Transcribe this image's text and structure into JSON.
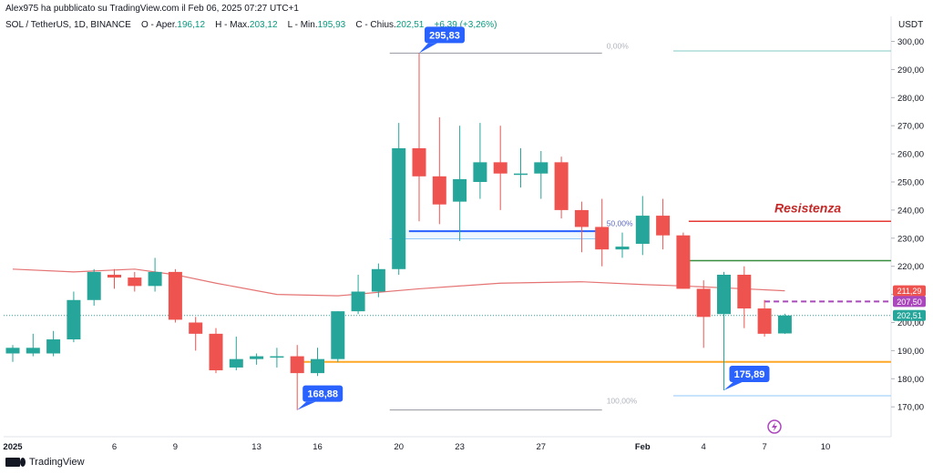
{
  "header": {
    "publisher": "Alex975 ha pubblicato su TradingView.com il Feb 06, 2025 07:27 UTC+1",
    "symbol": "SOL / TetherUS, 1D, BINANCE",
    "open_label": "O - Aper.",
    "open": "196,12",
    "high_label": "H - Max.",
    "high": "203,12",
    "low_label": "L - Min.",
    "low": "195,93",
    "close_label": "C - Chius.",
    "close": "202,51",
    "change": "+6,39 (+3,26%)",
    "currency": "USDT"
  },
  "footer": {
    "logo_text": "TradingView"
  },
  "colors": {
    "up": "#26a69a",
    "down": "#ef5350",
    "ma": "#e57373",
    "support": "#ffa726",
    "resistance": "#e53935",
    "blue_line": "#2962ff",
    "green_line": "#388e3c",
    "dashed": "#ab47bc",
    "callout": "#2962ff"
  },
  "chart_data": {
    "type": "candlestick",
    "y_range": [
      163,
      305
    ],
    "y_ticks": [
      "300,00",
      "290,00",
      "280,00",
      "270,00",
      "260,00",
      "250,00",
      "240,00",
      "230,00",
      "220,00",
      "210,00",
      "200,00",
      "190,00",
      "180,00",
      "170,00"
    ],
    "y_tick_values": [
      300,
      290,
      280,
      270,
      260,
      250,
      240,
      230,
      220,
      210,
      200,
      190,
      180,
      170
    ],
    "x_ticks": [
      {
        "day": 0,
        "label": "2025"
      },
      {
        "day": 5,
        "label": "6"
      },
      {
        "day": 8,
        "label": "9"
      },
      {
        "day": 12,
        "label": "13"
      },
      {
        "day": 15,
        "label": "16"
      },
      {
        "day": 19,
        "label": "20"
      },
      {
        "day": 22,
        "label": "23"
      },
      {
        "day": 26,
        "label": "27"
      },
      {
        "day": 31,
        "label": "Feb"
      },
      {
        "day": 34,
        "label": "4"
      },
      {
        "day": 37,
        "label": "7"
      },
      {
        "day": 40,
        "label": "10"
      }
    ],
    "candles": [
      {
        "o": 189,
        "h": 192,
        "l": 186,
        "c": 191
      },
      {
        "o": 189,
        "h": 196,
        "l": 188,
        "c": 191
      },
      {
        "o": 189,
        "h": 197,
        "l": 188,
        "c": 194
      },
      {
        "o": 194,
        "h": 211,
        "l": 193,
        "c": 208
      },
      {
        "o": 208,
        "h": 219,
        "l": 206,
        "c": 218
      },
      {
        "o": 217,
        "h": 219,
        "l": 212,
        "c": 216
      },
      {
        "o": 216,
        "h": 218,
        "l": 211,
        "c": 213
      },
      {
        "o": 213,
        "h": 223,
        "l": 211,
        "c": 218
      },
      {
        "o": 218,
        "h": 219,
        "l": 200,
        "c": 201
      },
      {
        "o": 200,
        "h": 202,
        "l": 190,
        "c": 196
      },
      {
        "o": 196,
        "h": 198,
        "l": 182,
        "c": 183
      },
      {
        "o": 184,
        "h": 195,
        "l": 183,
        "c": 187
      },
      {
        "o": 187,
        "h": 189,
        "l": 185,
        "c": 188
      },
      {
        "o": 188,
        "h": 191,
        "l": 184,
        "c": 188
      },
      {
        "o": 188,
        "h": 192,
        "l": 168.88,
        "c": 182
      },
      {
        "o": 182,
        "h": 191,
        "l": 181,
        "c": 187
      },
      {
        "o": 187,
        "h": 204,
        "l": 186,
        "c": 204
      },
      {
        "o": 204,
        "h": 217,
        "l": 203,
        "c": 211
      },
      {
        "o": 211,
        "h": 221,
        "l": 209,
        "c": 219
      },
      {
        "o": 219,
        "h": 271,
        "l": 217,
        "c": 262
      },
      {
        "o": 262,
        "h": 295.83,
        "l": 236,
        "c": 252
      },
      {
        "o": 252,
        "h": 273,
        "l": 235,
        "c": 242
      },
      {
        "o": 243,
        "h": 270,
        "l": 229,
        "c": 251
      },
      {
        "o": 250,
        "h": 271,
        "l": 244,
        "c": 257
      },
      {
        "o": 257,
        "h": 270,
        "l": 240,
        "c": 253
      },
      {
        "o": 253,
        "h": 262,
        "l": 248,
        "c": 253
      },
      {
        "o": 253,
        "h": 261,
        "l": 244,
        "c": 257
      },
      {
        "o": 257,
        "h": 259,
        "l": 237,
        "c": 240
      },
      {
        "o": 240,
        "h": 243,
        "l": 225,
        "c": 234
      },
      {
        "o": 234,
        "h": 244,
        "l": 220,
        "c": 226
      },
      {
        "o": 226,
        "h": 232,
        "l": 223,
        "c": 227
      },
      {
        "o": 228,
        "h": 245,
        "l": 224,
        "c": 238
      },
      {
        "o": 238,
        "h": 244,
        "l": 226,
        "c": 231
      },
      {
        "o": 231,
        "h": 232,
        "l": 212,
        "c": 212
      },
      {
        "o": 212,
        "h": 215,
        "l": 191,
        "c": 202
      },
      {
        "o": 203,
        "h": 218,
        "l": 175.89,
        "c": 217
      },
      {
        "o": 217,
        "h": 220,
        "l": 198,
        "c": 205
      },
      {
        "o": 205,
        "h": 208,
        "l": 195,
        "c": 196
      },
      {
        "o": 196.12,
        "h": 203.12,
        "l": 195.93,
        "c": 202.51
      }
    ],
    "moving_average": [
      {
        "day": 0,
        "v": 219
      },
      {
        "day": 3,
        "v": 218
      },
      {
        "day": 6,
        "v": 219
      },
      {
        "day": 8,
        "v": 217
      },
      {
        "day": 10,
        "v": 214
      },
      {
        "day": 13,
        "v": 210
      },
      {
        "day": 16,
        "v": 209.5
      },
      {
        "day": 20,
        "v": 212
      },
      {
        "day": 24,
        "v": 214
      },
      {
        "day": 28,
        "v": 214.5
      },
      {
        "day": 31,
        "v": 213.5
      },
      {
        "day": 33,
        "v": 213
      },
      {
        "day": 36,
        "v": 212
      },
      {
        "day": 38,
        "v": 211.29
      }
    ],
    "lines": {
      "support": {
        "value": 186,
        "from_day": 14
      },
      "resistance": {
        "value": 236,
        "from_day": 33,
        "label": "Resistenza"
      },
      "green": {
        "value": 222,
        "from_day": 33
      },
      "blue": {
        "value": 232.5,
        "from_day": 19.5,
        "to_day": 29
      },
      "dashed": {
        "value": 207.5,
        "from_day": 37
      }
    },
    "fib": {
      "top": 295.83,
      "bottom": 168.88,
      "labels": [
        "0,00%",
        "50,00%",
        "100,00%"
      ]
    },
    "callouts": {
      "high": {
        "value": "295,83",
        "day": 20,
        "price": 295.83
      },
      "low1": {
        "value": "168,88",
        "day": 14,
        "price": 168.88
      },
      "low2": {
        "value": "175,89",
        "day": 35,
        "price": 175.89
      }
    },
    "price_tags": [
      {
        "label": "211,29",
        "price": 211.29,
        "color": "#ef5350"
      },
      {
        "label": "207,50",
        "price": 207.5,
        "color": "#ab47bc"
      },
      {
        "label": "202,51",
        "price": 202.51,
        "color": "#26a69a"
      }
    ]
  }
}
